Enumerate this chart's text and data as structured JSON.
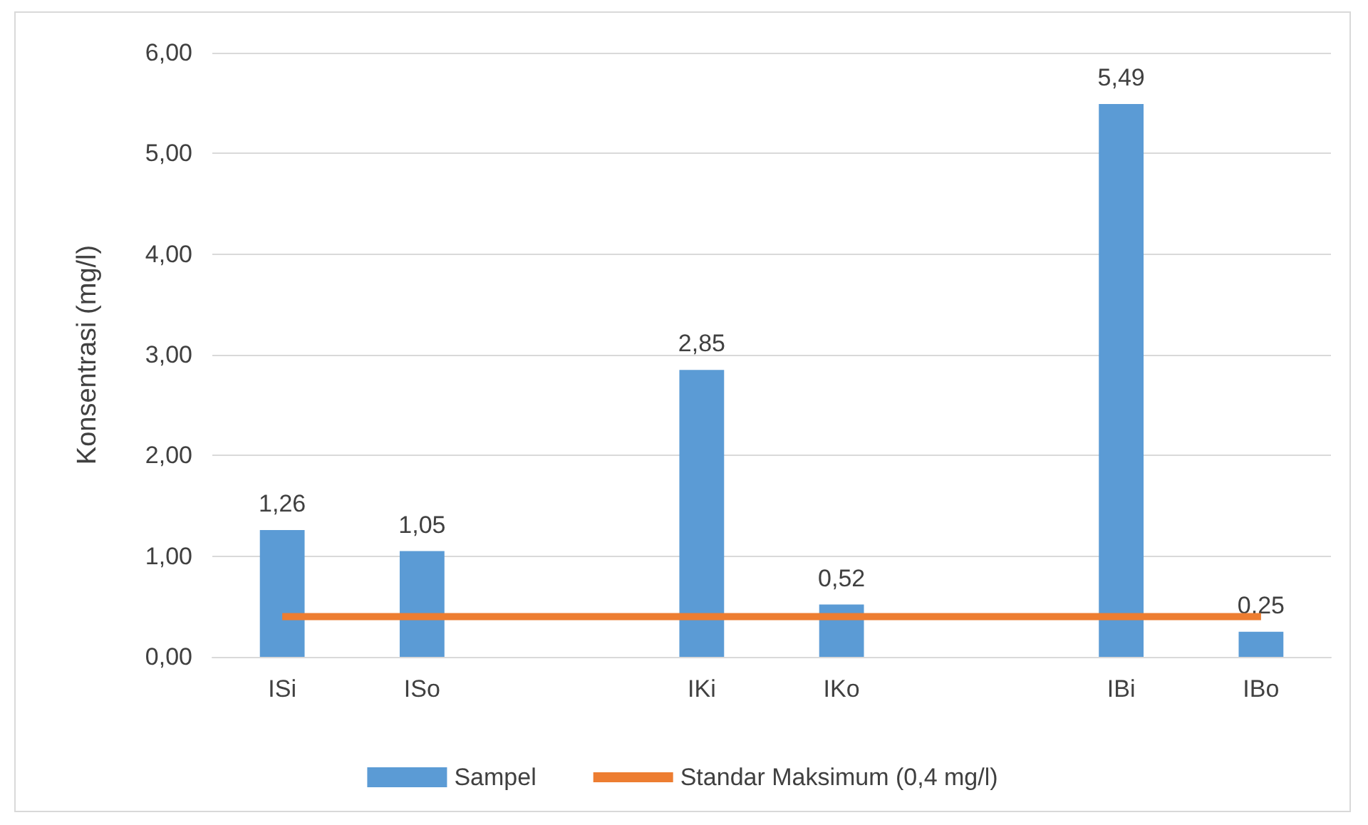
{
  "chart_data": {
    "type": "bar",
    "ylabel": "Konsentrasi (mg/l)",
    "categories": [
      "ISi",
      "ISo",
      null,
      "IKi",
      "IKo",
      null,
      "IBi",
      "IBo"
    ],
    "series": [
      {
        "name": "Sampel",
        "color": "#5b9bd5",
        "values": [
          1.26,
          1.05,
          null,
          2.85,
          0.52,
          null,
          5.49,
          0.25
        ],
        "value_labels": [
          "1,26",
          "1,05",
          null,
          "2,85",
          "0,52",
          null,
          "5,49",
          "0,25"
        ]
      },
      {
        "name": "Standar Maksimum (0,4 mg/l)",
        "type": "line",
        "color": "#ed7d31",
        "values": [
          0.4,
          0.4,
          0.4,
          0.4,
          0.4,
          0.4,
          0.4,
          0.4
        ],
        "marker": "none"
      }
    ],
    "ylim": [
      0,
      6
    ],
    "yticks": [
      {
        "value": 0,
        "label": "0,00"
      },
      {
        "value": 1,
        "label": "1,00"
      },
      {
        "value": 2,
        "label": "2,00"
      },
      {
        "value": 3,
        "label": "3,00"
      },
      {
        "value": 4,
        "label": "4,00"
      },
      {
        "value": 5,
        "label": "5,00"
      },
      {
        "value": 6,
        "label": "6,00"
      }
    ],
    "grid": "y",
    "legend": "bottom"
  }
}
